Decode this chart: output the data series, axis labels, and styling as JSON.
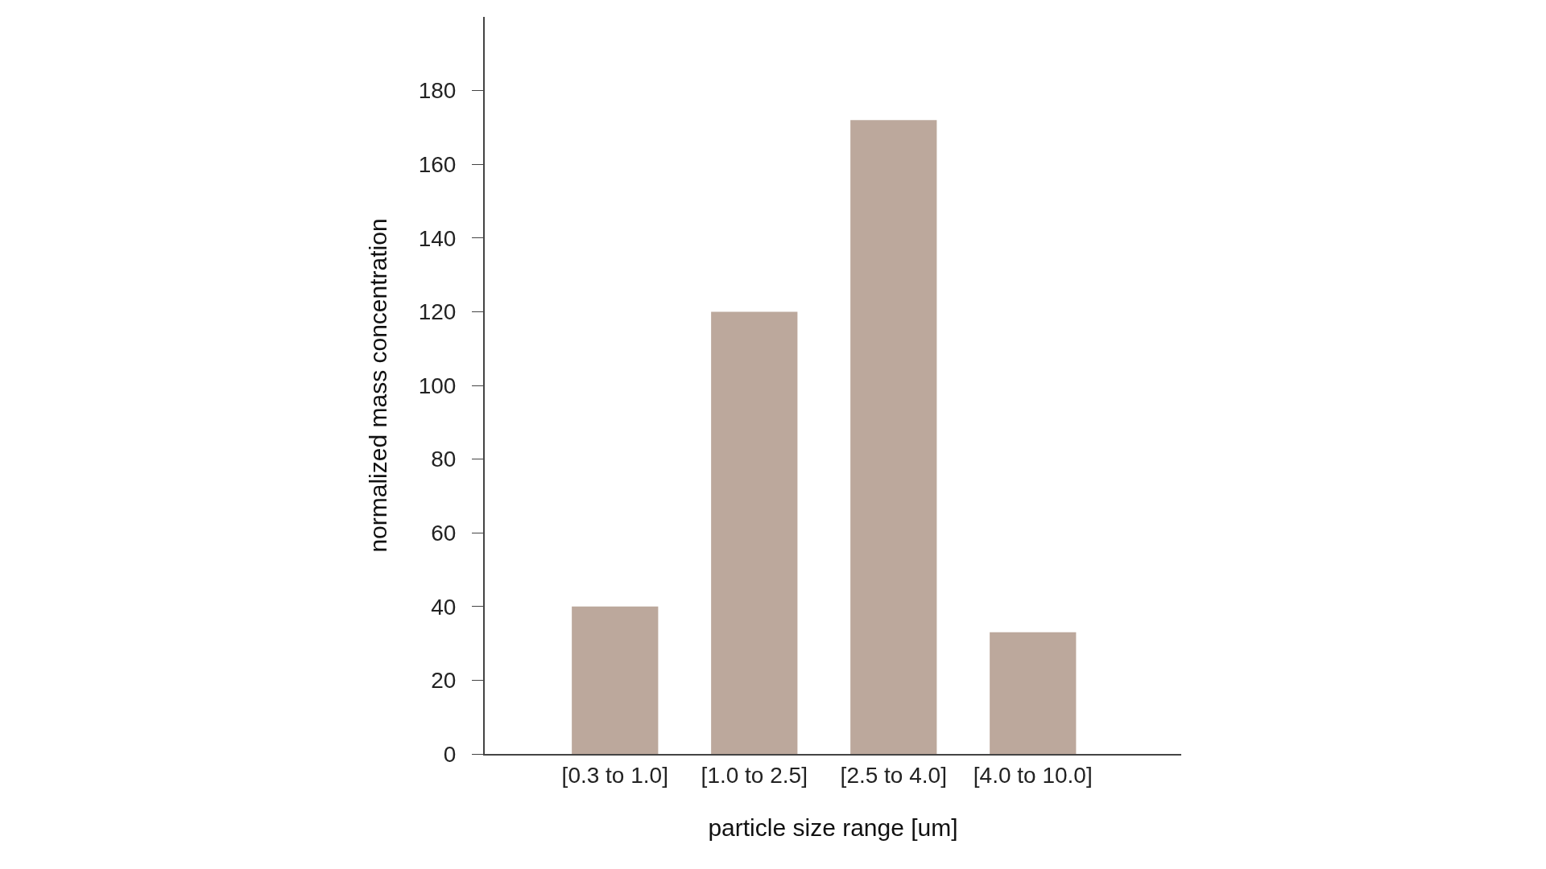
{
  "chart_data": {
    "type": "bar",
    "xlabel": "particle size range [um]",
    "ylabel": "normalized mass concentration",
    "categories": [
      "[0.3 to 1.0]",
      "[1.0 to 2.5]",
      "[2.5 to 4.0]",
      "[4.0 to 10.0]"
    ],
    "values": [
      40,
      120,
      172,
      33
    ],
    "color": "#bca89c",
    "ylim": [
      0,
      200
    ],
    "yticks": [
      0,
      20,
      40,
      60,
      80,
      100,
      120,
      140,
      160,
      180
    ]
  }
}
